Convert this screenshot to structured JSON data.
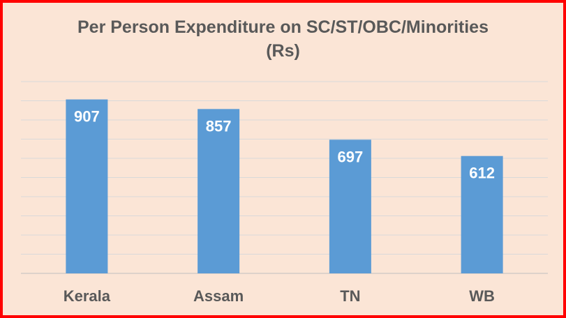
{
  "chart_data": {
    "type": "bar",
    "title_line1": "Per Person Expenditure on SC/ST/OBC/Minorities",
    "title_line2": "(Rs)",
    "categories": [
      "Kerala",
      "Assam",
      "TN",
      "WB"
    ],
    "values": [
      907,
      857,
      697,
      612
    ],
    "ylim": [
      0,
      1000
    ],
    "grid": true,
    "legend": "none",
    "colors": {
      "bar": "#5b9bd5",
      "background": "#fbe5d6",
      "border": "#ff0000"
    }
  }
}
